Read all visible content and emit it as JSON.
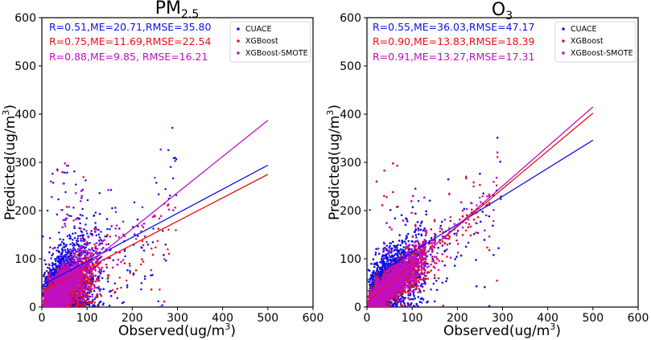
{
  "colors": {
    "CUACE": "#1010e8",
    "XGBoost": "#e81010",
    "XGBoost-SMOTE": "#c010c0"
  },
  "chart_data": [
    {
      "type": "scatter",
      "id": "pm25",
      "title_main": "PM",
      "title_sub": "2.5",
      "xlabel": "Observed(ug/m",
      "ylabel": "Predicted(ug/m",
      "unit_power": "3",
      "unit_close": ")",
      "xlim": [
        0,
        600
      ],
      "ylim": [
        0,
        600
      ],
      "xticks": [
        "0",
        "100",
        "200",
        "300",
        "400",
        "500",
        "600"
      ],
      "yticks": [
        "0",
        "100",
        "200",
        "300",
        "400",
        "500",
        "600"
      ],
      "legend_position": "top-right",
      "legend": [
        "CUACE",
        "XGBoost",
        "XGBoost-SMOTE"
      ],
      "stats": [
        "R=0.51,ME=20.71,RMSE=35.80",
        "R=0.75,ME=11.69,RMSE=22.54",
        "R=0.88,ME=9.85, RMSE=16.21"
      ],
      "series": [
        {
          "name": "CUACE",
          "fit": [
            [
              0,
              45
            ],
            [
              500,
              294
            ]
          ]
        },
        {
          "name": "XGBoost",
          "fit": [
            [
              0,
              32
            ],
            [
              500,
              275
            ]
          ]
        },
        {
          "name": "XGBoost-SMOTE",
          "fit": [
            [
              0,
              12
            ],
            [
              500,
              387
            ]
          ]
        }
      ]
    },
    {
      "type": "scatter",
      "id": "o3",
      "title_main": "O",
      "title_sub": "3",
      "xlabel": "Observed(ug/m",
      "ylabel": "Predicted(ug/m",
      "unit_power": "3",
      "unit_close": ")",
      "xlim": [
        0,
        600
      ],
      "ylim": [
        0,
        600
      ],
      "xticks": [
        "0",
        "100",
        "200",
        "300",
        "400",
        "500",
        "600"
      ],
      "yticks": [
        "0",
        "100",
        "200",
        "300",
        "400",
        "500",
        "600"
      ],
      "legend_position": "top-right",
      "legend": [
        "CUACE",
        "XGBoost",
        "XGBoost-SMOTE"
      ],
      "stats": [
        "R=0.55,ME=36.03,RMSE=47.17",
        "R=0.90,ME=13.83,RMSE=18.39",
        "R=0.91,ME=13.27,RMSE=17.31"
      ],
      "series": [
        {
          "name": "CUACE",
          "fit": [
            [
              0,
              55
            ],
            [
              500,
              346
            ]
          ]
        },
        {
          "name": "XGBoost",
          "fit": [
            [
              0,
              10
            ],
            [
              500,
              402
            ]
          ]
        },
        {
          "name": "XGBoost-SMOTE",
          "fit": [
            [
              0,
              5
            ],
            [
              500,
              415
            ]
          ]
        }
      ]
    }
  ]
}
